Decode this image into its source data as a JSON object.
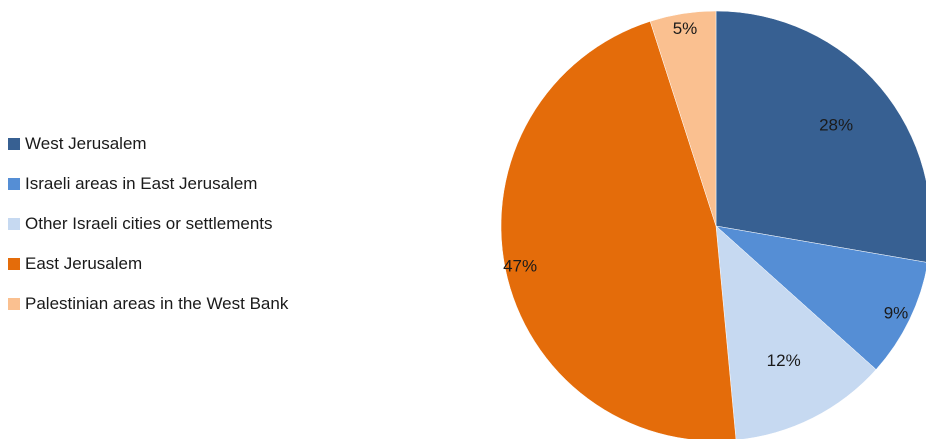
{
  "chart_data": {
    "type": "pie",
    "title": "",
    "legend_position": "left",
    "slices": [
      {
        "label": "West Jerusalem",
        "value": 28,
        "display": "28%",
        "color": "#376092"
      },
      {
        "label": "Israeli areas in East Jerusalem",
        "value": 9,
        "display": "9%",
        "color": "#558ED5"
      },
      {
        "label": "Other Israeli cities or settlements",
        "value": 12,
        "display": "12%",
        "color": "#C6D9F1"
      },
      {
        "label": "East Jerusalem",
        "value": 47,
        "display": "47%",
        "color": "#E46C0A"
      },
      {
        "label": "Palestinian areas in the West Bank",
        "value": 5,
        "display": "5%",
        "color": "#FAC090"
      }
    ]
  }
}
